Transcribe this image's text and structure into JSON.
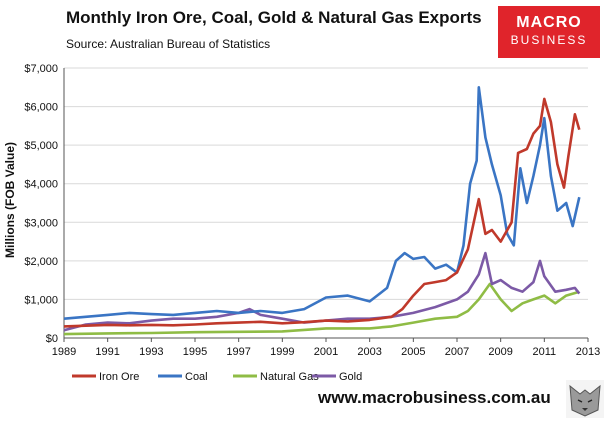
{
  "header": {
    "title": "Monthly Iron Ore, Coal, Gold & Natural Gas Exports",
    "source": "Source:  Australian Bureau of Statistics"
  },
  "brand": {
    "logo_line1": "MACRO",
    "logo_line2": "BUSINESS",
    "url": "www.macrobusiness.com.au",
    "accent": "#e0242b"
  },
  "chart_data": {
    "type": "line",
    "title": "Monthly Iron Ore, Coal, Gold & Natural Gas Exports",
    "ylabel": "Millions (FOB Value)",
    "xlabel": "",
    "xlim": [
      1989,
      2013
    ],
    "ylim": [
      0,
      7000
    ],
    "grid": true,
    "legend_position": "bottom",
    "x_ticks": [
      "1989",
      "1991",
      "1993",
      "1995",
      "1997",
      "1999",
      "2001",
      "2003",
      "2005",
      "2007",
      "2009",
      "2011",
      "2013"
    ],
    "y_ticks": [
      "$0",
      "$1,000",
      "$2,000",
      "$3,000",
      "$4,000",
      "$5,000",
      "$6,000",
      "$7,000"
    ],
    "series": [
      {
        "name": "Iron Ore",
        "color": "#c0392b",
        "points": [
          [
            1989.0,
            300
          ],
          [
            1990.0,
            320
          ],
          [
            1991.0,
            340
          ],
          [
            1992.0,
            330
          ],
          [
            1993.0,
            340
          ],
          [
            1994.0,
            330
          ],
          [
            1995.0,
            350
          ],
          [
            1996.0,
            380
          ],
          [
            1997.0,
            400
          ],
          [
            1998.0,
            420
          ],
          [
            1999.0,
            380
          ],
          [
            2000.0,
            410
          ],
          [
            2001.0,
            450
          ],
          [
            2002.0,
            430
          ],
          [
            2003.0,
            470
          ],
          [
            2004.0,
            550
          ],
          [
            2004.5,
            750
          ],
          [
            2005.0,
            1100
          ],
          [
            2005.5,
            1400
          ],
          [
            2006.0,
            1450
          ],
          [
            2006.5,
            1500
          ],
          [
            2007.0,
            1700
          ],
          [
            2007.5,
            2300
          ],
          [
            2008.0,
            3600
          ],
          [
            2008.3,
            2700
          ],
          [
            2008.6,
            2800
          ],
          [
            2009.0,
            2500
          ],
          [
            2009.5,
            3000
          ],
          [
            2009.8,
            4800
          ],
          [
            2010.2,
            4900
          ],
          [
            2010.5,
            5300
          ],
          [
            2010.8,
            5500
          ],
          [
            2011.0,
            6200
          ],
          [
            2011.3,
            5600
          ],
          [
            2011.6,
            4500
          ],
          [
            2011.9,
            3900
          ],
          [
            2012.1,
            4700
          ],
          [
            2012.4,
            5800
          ],
          [
            2012.6,
            5400
          ]
        ]
      },
      {
        "name": "Coal",
        "color": "#3a75c4",
        "points": [
          [
            1989.0,
            500
          ],
          [
            1990.0,
            550
          ],
          [
            1991.0,
            600
          ],
          [
            1992.0,
            650
          ],
          [
            1993.0,
            620
          ],
          [
            1994.0,
            600
          ],
          [
            1995.0,
            650
          ],
          [
            1996.0,
            700
          ],
          [
            1997.0,
            650
          ],
          [
            1998.0,
            700
          ],
          [
            1999.0,
            650
          ],
          [
            2000.0,
            750
          ],
          [
            2001.0,
            1050
          ],
          [
            2002.0,
            1100
          ],
          [
            2003.0,
            950
          ],
          [
            2003.8,
            1300
          ],
          [
            2004.2,
            2000
          ],
          [
            2004.6,
            2200
          ],
          [
            2005.0,
            2050
          ],
          [
            2005.5,
            2100
          ],
          [
            2006.0,
            1800
          ],
          [
            2006.5,
            1900
          ],
          [
            2007.0,
            1700
          ],
          [
            2007.3,
            2400
          ],
          [
            2007.6,
            4000
          ],
          [
            2007.9,
            4600
          ],
          [
            2008.0,
            6500
          ],
          [
            2008.3,
            5200
          ],
          [
            2008.6,
            4500
          ],
          [
            2009.0,
            3700
          ],
          [
            2009.3,
            2700
          ],
          [
            2009.6,
            2400
          ],
          [
            2009.9,
            4400
          ],
          [
            2010.2,
            3500
          ],
          [
            2010.5,
            4200
          ],
          [
            2010.8,
            5000
          ],
          [
            2011.0,
            5700
          ],
          [
            2011.3,
            4200
          ],
          [
            2011.6,
            3300
          ],
          [
            2012.0,
            3500
          ],
          [
            2012.3,
            2900
          ],
          [
            2012.6,
            3650
          ]
        ]
      },
      {
        "name": "Natural Gas",
        "color": "#8fbc45",
        "points": [
          [
            1989.0,
            100
          ],
          [
            1991.0,
            120
          ],
          [
            1993.0,
            130
          ],
          [
            1995.0,
            150
          ],
          [
            1997.0,
            160
          ],
          [
            1999.0,
            170
          ],
          [
            2001.0,
            250
          ],
          [
            2003.0,
            250
          ],
          [
            2004.0,
            300
          ],
          [
            2005.0,
            400
          ],
          [
            2006.0,
            500
          ],
          [
            2007.0,
            550
          ],
          [
            2007.5,
            700
          ],
          [
            2008.0,
            1000
          ],
          [
            2008.5,
            1400
          ],
          [
            2009.0,
            1000
          ],
          [
            2009.5,
            700
          ],
          [
            2010.0,
            900
          ],
          [
            2010.5,
            1000
          ],
          [
            2011.0,
            1100
          ],
          [
            2011.5,
            900
          ],
          [
            2012.0,
            1100
          ],
          [
            2012.6,
            1200
          ]
        ]
      },
      {
        "name": "Gold",
        "color": "#7c5aa6",
        "points": [
          [
            1989.0,
            200
          ],
          [
            1990.0,
            350
          ],
          [
            1991.0,
            400
          ],
          [
            1992.0,
            380
          ],
          [
            1993.0,
            450
          ],
          [
            1994.0,
            500
          ],
          [
            1995.0,
            500
          ],
          [
            1996.0,
            550
          ],
          [
            1997.0,
            650
          ],
          [
            1997.5,
            750
          ],
          [
            1998.0,
            600
          ],
          [
            1999.0,
            500
          ],
          [
            2000.0,
            400
          ],
          [
            2001.0,
            450
          ],
          [
            2002.0,
            500
          ],
          [
            2003.0,
            500
          ],
          [
            2004.0,
            550
          ],
          [
            2005.0,
            650
          ],
          [
            2006.0,
            800
          ],
          [
            2007.0,
            1000
          ],
          [
            2007.5,
            1200
          ],
          [
            2008.0,
            1650
          ],
          [
            2008.3,
            2200
          ],
          [
            2008.6,
            1400
          ],
          [
            2009.0,
            1500
          ],
          [
            2009.5,
            1300
          ],
          [
            2010.0,
            1200
          ],
          [
            2010.5,
            1450
          ],
          [
            2010.8,
            2000
          ],
          [
            2011.0,
            1600
          ],
          [
            2011.5,
            1200
          ],
          [
            2012.0,
            1250
          ],
          [
            2012.4,
            1300
          ],
          [
            2012.6,
            1150
          ]
        ]
      }
    ]
  }
}
